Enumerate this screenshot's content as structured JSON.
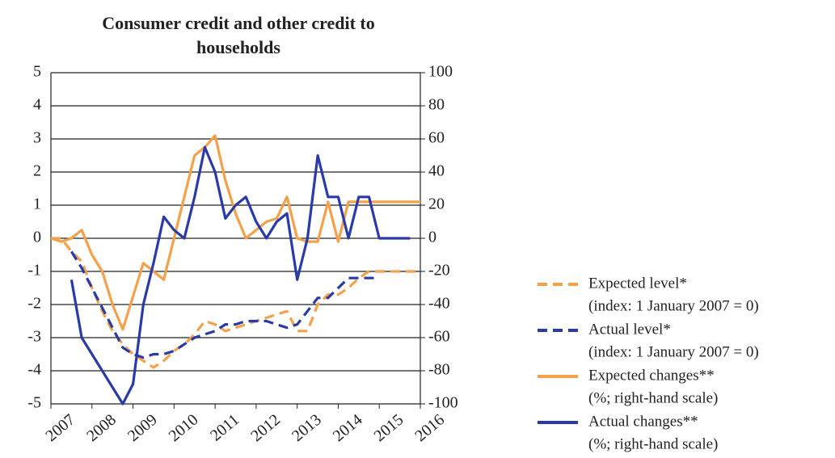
{
  "chart_data": {
    "type": "line",
    "title": "Consumer credit and other credit to households",
    "x": [
      2007,
      2007.25,
      2007.5,
      2007.75,
      2008,
      2008.25,
      2008.5,
      2008.75,
      2009,
      2009.25,
      2009.5,
      2009.75,
      2010,
      2010.25,
      2010.5,
      2010.75,
      2011,
      2011.25,
      2011.5,
      2011.75,
      2012,
      2012.25,
      2012.5,
      2012.75,
      2013,
      2013.25,
      2013.5,
      2013.75,
      2014,
      2014.25,
      2014.5,
      2014.75,
      2015,
      2015.25,
      2015.5,
      2015.75,
      2016
    ],
    "xlim": [
      2007,
      2016
    ],
    "xticks": [
      2007,
      2008,
      2009,
      2010,
      2011,
      2012,
      2013,
      2014,
      2015,
      2016
    ],
    "ylim": [
      -5,
      5
    ],
    "yticks": [
      -5,
      -4,
      -3,
      -2,
      -1,
      0,
      1,
      2,
      3,
      4,
      5
    ],
    "y2lim": [
      -100,
      100
    ],
    "y2ticks": [
      -100,
      -80,
      -60,
      -40,
      -20,
      0,
      20,
      40,
      60,
      80,
      100
    ],
    "grid": true,
    "legend": "right",
    "series": [
      {
        "name": "Expected level*",
        "note": "(index: 1 January 2007 = 0)",
        "color": "#f5a04a",
        "dash": true,
        "axis": "y",
        "values": [
          0,
          0,
          -0.4,
          -0.7,
          -1.5,
          -2.2,
          -2.8,
          -3.2,
          -3.5,
          -3.7,
          -3.9,
          -3.7,
          -3.4,
          -3.2,
          -2.9,
          -2.5,
          -2.6,
          -2.8,
          -2.7,
          -2.6,
          -2.5,
          -2.4,
          -2.3,
          -2.2,
          -2.8,
          -2.8,
          -2.0,
          -1.7,
          -1.7,
          -1.5,
          -1.2,
          -1.0,
          -1.0,
          -1.0,
          -1.0,
          -1.0,
          -1.0
        ]
      },
      {
        "name": "Actual level*",
        "note": "(index: 1 January 2007 = 0)",
        "color": "#2a3aa8",
        "dash": true,
        "axis": "y",
        "values": [
          null,
          null,
          -0.4,
          -0.9,
          -1.5,
          -2.1,
          -2.7,
          -3.3,
          -3.5,
          -3.6,
          -3.5,
          -3.5,
          -3.4,
          -3.2,
          -3.0,
          -2.9,
          -2.8,
          -2.6,
          -2.6,
          -2.5,
          -2.5,
          -2.5,
          -2.6,
          -2.7,
          -2.6,
          -2.2,
          -1.8,
          -1.8,
          -1.5,
          -1.2,
          -1.2,
          -1.2,
          -1.2,
          null,
          null,
          null,
          null
        ]
      },
      {
        "name": "Expected changes**",
        "note": "(%; right-hand scale)",
        "color": "#f5a04a",
        "dash": false,
        "axis": "y2",
        "values": [
          0,
          -2,
          0,
          5,
          -10,
          -20,
          -40,
          -55,
          -35,
          -15,
          -20,
          -25,
          0,
          25,
          50,
          55,
          62,
          35,
          15,
          0,
          5,
          10,
          12,
          25,
          0,
          -2,
          -2,
          22,
          -2,
          22,
          22,
          22,
          22,
          22,
          22,
          22,
          22
        ]
      },
      {
        "name": "Actual changes**",
        "note": "(%; right-hand scale)",
        "color": "#2a3aa8",
        "dash": false,
        "axis": "y2",
        "values": [
          null,
          null,
          -25,
          -60,
          -70,
          -80,
          -90,
          -100,
          -88,
          -40,
          -15,
          13,
          5,
          0,
          25,
          55,
          40,
          12,
          20,
          25,
          10,
          0,
          10,
          15,
          -25,
          0,
          50,
          25,
          25,
          0,
          25,
          25,
          0,
          0,
          0,
          0,
          null
        ]
      }
    ]
  }
}
